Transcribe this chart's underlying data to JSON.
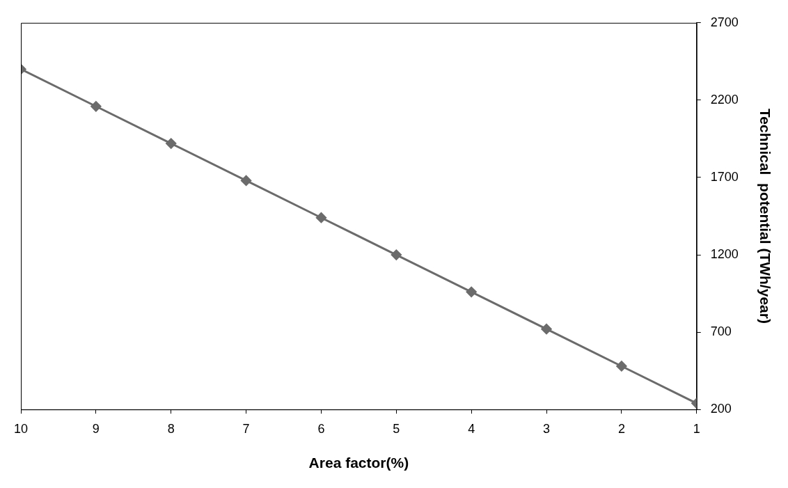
{
  "chart_data": {
    "type": "line",
    "xlabel": "Area factor(%)",
    "ylabel": "Technical  potential (TWh/year)",
    "x": [
      10,
      9,
      8,
      7,
      6,
      5,
      4,
      3,
      2,
      1
    ],
    "series": [
      {
        "color": "#6b6b6b",
        "values": [
          2400,
          2160,
          1920,
          1680,
          1440,
          1200,
          960,
          720,
          480,
          240
        ]
      }
    ],
    "xlim": [
      10,
      1
    ],
    "xticks": [
      10,
      9,
      8,
      7,
      6,
      5,
      4,
      3,
      2,
      1
    ],
    "ylim": [
      200,
      2700
    ],
    "yticks": [
      200,
      700,
      1200,
      1700,
      2200,
      2700
    ],
    "grid": false,
    "legend": false,
    "marker": "diamond",
    "line_style": "solid"
  }
}
